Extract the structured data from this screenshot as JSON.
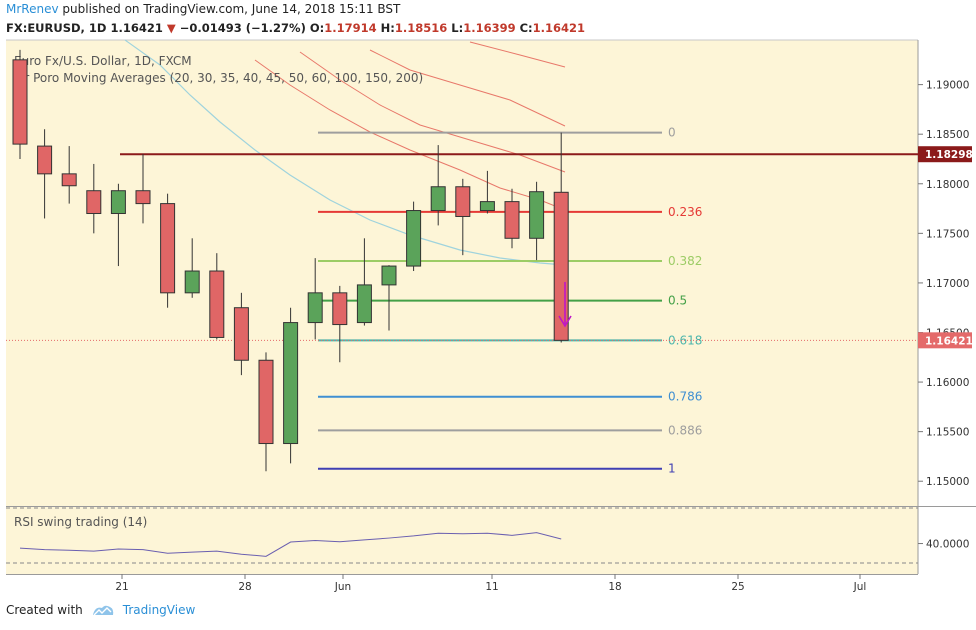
{
  "header": {
    "author": "MrRenev",
    "published_text": "published on TradingView.com, June 14, 2018 15:11 BST",
    "symbol": "FX:EURUSD, 1D",
    "last_price": "1.16421",
    "change": "−0.01493 (−1.27%)",
    "o_label": "O:",
    "o_value": "1.17914",
    "h_label": "H:",
    "h_value": "1.18516",
    "l_label": "L:",
    "l_value": "1.16399",
    "c_label": "C:",
    "c_value": "1.16421"
  },
  "legend": {
    "instrument": "Euro Fx/U.S. Dollar, 1D, FXCM",
    "indicator": "Mr Poro Moving Averages (20, 30, 35, 40, 45, 50, 60, 100, 150, 200)"
  },
  "rsi_label": "RSI swing trading (14)",
  "footer": {
    "created_with": "Created with",
    "brand": "TradingView"
  },
  "chart_data": {
    "type": "candlestick",
    "y_range": [
      1.1475,
      1.1945
    ],
    "y_ticks": [
      "1.19000",
      "1.18500",
      "1.18000",
      "1.17500",
      "1.17000",
      "1.16500",
      "1.16000",
      "1.15500",
      "1.15000"
    ],
    "x_ticks": [
      "21",
      "28",
      "Jun",
      "11",
      "18",
      "25",
      "Jul"
    ],
    "price_tags": [
      {
        "label": "1.18298",
        "value": 1.18298,
        "color": "#8b1a1a"
      },
      {
        "label": "1.16421",
        "value": 1.16421,
        "color": "#e46a6a"
      }
    ],
    "candles": [
      {
        "o": 1.1925,
        "h": 1.1935,
        "l": 1.1825,
        "c": 1.184
      },
      {
        "o": 1.1838,
        "h": 1.1855,
        "l": 1.1765,
        "c": 1.181
      },
      {
        "o": 1.181,
        "h": 1.1838,
        "l": 1.178,
        "c": 1.1798
      },
      {
        "o": 1.1793,
        "h": 1.182,
        "l": 1.175,
        "c": 1.177
      },
      {
        "o": 1.177,
        "h": 1.18,
        "l": 1.1717,
        "c": 1.1793
      },
      {
        "o": 1.1793,
        "h": 1.183,
        "l": 1.176,
        "c": 1.178
      },
      {
        "o": 1.178,
        "h": 1.179,
        "l": 1.1675,
        "c": 1.169
      },
      {
        "o": 1.169,
        "h": 1.1745,
        "l": 1.1685,
        "c": 1.1712
      },
      {
        "o": 1.1712,
        "h": 1.173,
        "l": 1.1643,
        "c": 1.1645
      },
      {
        "o": 1.1675,
        "h": 1.169,
        "l": 1.1607,
        "c": 1.1622
      },
      {
        "o": 1.1622,
        "h": 1.163,
        "l": 1.151,
        "c": 1.1538
      },
      {
        "o": 1.1538,
        "h": 1.1675,
        "l": 1.1518,
        "c": 1.166
      },
      {
        "o": 1.166,
        "h": 1.1725,
        "l": 1.1643,
        "c": 1.169
      },
      {
        "o": 1.169,
        "h": 1.1697,
        "l": 1.162,
        "c": 1.1658
      },
      {
        "o": 1.166,
        "h": 1.1745,
        "l": 1.1657,
        "c": 1.1698
      },
      {
        "o": 1.1698,
        "h": 1.1718,
        "l": 1.1652,
        "c": 1.1717
      },
      {
        "o": 1.1717,
        "h": 1.1782,
        "l": 1.1712,
        "c": 1.1773
      },
      {
        "o": 1.1773,
        "h": 1.1839,
        "l": 1.1758,
        "c": 1.1797
      },
      {
        "o": 1.1797,
        "h": 1.1805,
        "l": 1.1728,
        "c": 1.1767
      },
      {
        "o": 1.1773,
        "h": 1.1813,
        "l": 1.177,
        "c": 1.1782
      },
      {
        "o": 1.1782,
        "h": 1.1795,
        "l": 1.1735,
        "c": 1.1745
      },
      {
        "o": 1.1745,
        "h": 1.1802,
        "l": 1.1723,
        "c": 1.1792
      },
      {
        "o": 1.17914,
        "h": 1.18516,
        "l": 1.16399,
        "c": 1.16421
      }
    ],
    "fibonacci": [
      {
        "label": "0",
        "value": 1.18516,
        "color": "#9e9e9e"
      },
      {
        "label": "0.236",
        "value": 1.17716,
        "color": "#e53935"
      },
      {
        "label": "0.382",
        "value": 1.17221,
        "color": "#9ccc65"
      },
      {
        "label": "0.5",
        "value": 1.16821,
        "color": "#43a047"
      },
      {
        "label": "0.618",
        "value": 1.16421,
        "color": "#4db6ac"
      },
      {
        "label": "0.786",
        "value": 1.15852,
        "color": "#3f8fd2"
      },
      {
        "label": "0.886",
        "value": 1.15513,
        "color": "#9e9e9e"
      },
      {
        "label": "1",
        "value": 1.15126,
        "color": "#3f3fb3"
      }
    ],
    "resistance_line": {
      "value": 1.18298,
      "color": "#8b1a1a"
    },
    "rsi": {
      "tick_label": "40.0000",
      "values": [
        38.5,
        38,
        37.8,
        37.5,
        38.2,
        38,
        36.8,
        37.2,
        37.5,
        36.5,
        35.8,
        40.5,
        41,
        40.6,
        41.2,
        41.8,
        42.5,
        43.4,
        43.2,
        43.4,
        42.7,
        43.6,
        41.5
      ]
    }
  }
}
